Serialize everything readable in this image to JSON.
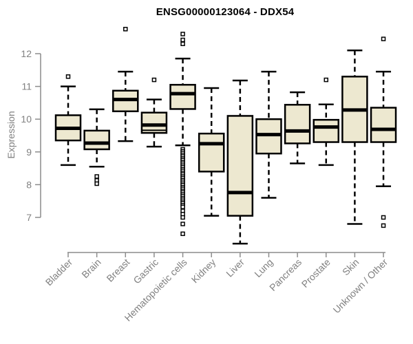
{
  "title": "ENSG00000123064 - DDX54",
  "chart_data": {
    "type": "boxplot",
    "title": "ENSG00000123064 - DDX54",
    "ylabel": "Expression",
    "xlabel": "",
    "ylim": [
      6.0,
      12.9
    ],
    "yticks": [
      7,
      8,
      9,
      10,
      11,
      12
    ],
    "grid": false,
    "legend": false,
    "categories": [
      "Bladder",
      "Brain",
      "Breast",
      "Gastric",
      "Hematopoietic cells",
      "Kidney",
      "Liver",
      "Lung",
      "Pancreas",
      "Prostate",
      "Skin",
      "Unknown / Other"
    ],
    "series": [
      {
        "name": "Bladder",
        "whisker_low": 8.6,
        "q1": 9.35,
        "median": 9.72,
        "q3": 10.12,
        "whisker_high": 11.0,
        "outliers_high": [
          11.3
        ],
        "outliers_low": []
      },
      {
        "name": "Brain",
        "whisker_low": 8.55,
        "q1": 9.08,
        "median": 9.27,
        "q3": 9.65,
        "whisker_high": 10.3,
        "outliers_high": [],
        "outliers_low": [
          8.25,
          8.13,
          8.03
        ]
      },
      {
        "name": "Breast",
        "whisker_low": 9.33,
        "q1": 10.24,
        "median": 10.6,
        "q3": 10.87,
        "whisker_high": 11.45,
        "outliers_high": [
          12.75
        ],
        "outliers_low": []
      },
      {
        "name": "Gastric",
        "whisker_low": 9.16,
        "q1": 9.58,
        "median": 9.82,
        "q3": 10.2,
        "whisker_high": 10.6,
        "extra_line": 9.66,
        "outliers_high": [
          11.2
        ],
        "outliers_low": []
      },
      {
        "name": "Hematopoietic cells",
        "whisker_low": 9.2,
        "q1": 10.31,
        "median": 10.78,
        "q3": 11.05,
        "whisker_high": 11.85,
        "outliers_high": [
          12.6,
          12.42,
          12.3
        ],
        "outliers_low": [
          9.08,
          9.02,
          8.97,
          8.91,
          8.86,
          8.8,
          8.75,
          8.69,
          8.64,
          8.58,
          8.53,
          8.47,
          8.42,
          8.36,
          8.31,
          8.25,
          8.2,
          8.14,
          8.09,
          8.03,
          7.98,
          7.92,
          7.87,
          7.81,
          7.76,
          7.7,
          7.65,
          7.59,
          7.54,
          7.48,
          7.43,
          7.37,
          7.32,
          7.2,
          7.1,
          7.0,
          6.8,
          6.5
        ]
      },
      {
        "name": "Kidney",
        "whisker_low": 7.05,
        "q1": 8.4,
        "median": 9.25,
        "q3": 9.56,
        "whisker_high": 10.95,
        "outliers_high": [],
        "outliers_low": []
      },
      {
        "name": "Liver",
        "whisker_low": 6.2,
        "q1": 7.05,
        "median": 7.76,
        "q3": 10.1,
        "whisker_high": 11.18,
        "outliers_high": [],
        "outliers_low": []
      },
      {
        "name": "Lung",
        "whisker_low": 7.6,
        "q1": 8.95,
        "median": 9.53,
        "q3": 10.0,
        "whisker_high": 11.45,
        "outliers_high": [],
        "outliers_low": []
      },
      {
        "name": "Pancreas",
        "whisker_low": 8.65,
        "q1": 9.26,
        "median": 9.64,
        "q3": 10.44,
        "whisker_high": 10.82,
        "outliers_high": [],
        "outliers_low": []
      },
      {
        "name": "Prostate",
        "whisker_low": 8.6,
        "q1": 9.3,
        "median": 9.76,
        "q3": 9.98,
        "whisker_high": 10.45,
        "outliers_high": [
          11.2
        ],
        "outliers_low": []
      },
      {
        "name": "Skin",
        "whisker_low": 6.8,
        "q1": 9.3,
        "median": 10.28,
        "q3": 11.3,
        "whisker_high": 12.1,
        "outliers_high": [],
        "outliers_low": []
      },
      {
        "name": "Unknown / Other",
        "whisker_low": 7.95,
        "q1": 9.3,
        "median": 9.69,
        "q3": 10.35,
        "whisker_high": 11.45,
        "outliers_high": [
          12.45
        ],
        "outliers_low": [
          7.0,
          6.75
        ]
      }
    ],
    "colors": {
      "box_fill": "#ede8d0",
      "box_stroke": "#000000",
      "median": "#000000",
      "whisker": "#000000",
      "outlier_fill": "#ffffff",
      "axis": "#8c8c8c",
      "tick_text": "#808080",
      "title_text": "#000000",
      "background": "#ffffff"
    }
  }
}
